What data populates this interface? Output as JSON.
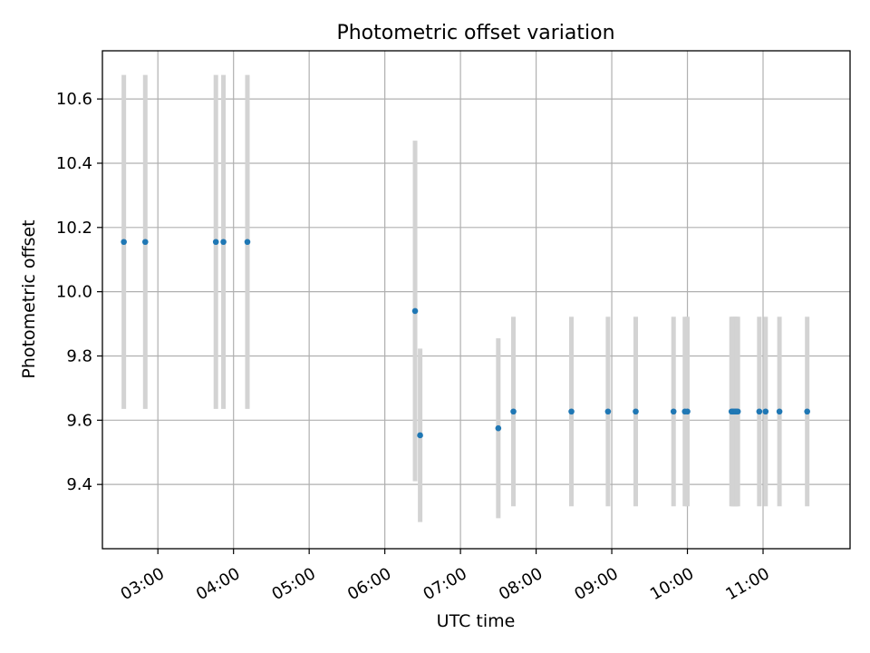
{
  "chart_data": {
    "type": "scatter",
    "title": "Photometric offset variation",
    "xlabel": "UTC time",
    "ylabel": "Photometric offset",
    "x_tick_labels": [
      "03:00",
      "04:00",
      "05:00",
      "06:00",
      "07:00",
      "08:00",
      "09:00",
      "10:00",
      "11:00"
    ],
    "x_tick_hours": [
      3,
      4,
      5,
      6,
      7,
      8,
      9,
      10,
      11
    ],
    "y_tick_labels": [
      "9.4",
      "9.6",
      "9.8",
      "10.0",
      "10.2",
      "10.4",
      "10.6"
    ],
    "y_ticks": [
      9.4,
      9.6,
      9.8,
      10.0,
      10.2,
      10.4,
      10.6
    ],
    "xlim": [
      "02:16",
      "12:09"
    ],
    "ylim": [
      9.2,
      10.75
    ],
    "grid": true,
    "marker_color": "#1f77b4",
    "errorbar_color": "#d3d3d3",
    "points": [
      {
        "x": "02:33",
        "y": 10.155,
        "err": 0.52
      },
      {
        "x": "02:50",
        "y": 10.155,
        "err": 0.52
      },
      {
        "x": "03:46",
        "y": 10.155,
        "err": 0.52
      },
      {
        "x": "03:52",
        "y": 10.155,
        "err": 0.52
      },
      {
        "x": "04:11",
        "y": 10.155,
        "err": 0.52
      },
      {
        "x": "06:24",
        "y": 9.94,
        "err": 0.53
      },
      {
        "x": "06:28",
        "y": 9.553,
        "err": 0.27
      },
      {
        "x": "07:30",
        "y": 9.575,
        "err": 0.28
      },
      {
        "x": "07:42",
        "y": 9.627,
        "err": 0.295
      },
      {
        "x": "08:28",
        "y": 9.627,
        "err": 0.295
      },
      {
        "x": "08:57",
        "y": 9.627,
        "err": 0.295
      },
      {
        "x": "09:19",
        "y": 9.627,
        "err": 0.295
      },
      {
        "x": "09:49",
        "y": 9.627,
        "err": 0.295
      },
      {
        "x": "09:58",
        "y": 9.627,
        "err": 0.295
      },
      {
        "x": "10:00",
        "y": 9.627,
        "err": 0.295
      },
      {
        "x": "10:35",
        "y": 9.627,
        "err": 0.295
      },
      {
        "x": "10:36",
        "y": 9.627,
        "err": 0.295
      },
      {
        "x": "10:37",
        "y": 9.627,
        "err": 0.295
      },
      {
        "x": "10:38",
        "y": 9.627,
        "err": 0.295
      },
      {
        "x": "10:39",
        "y": 9.627,
        "err": 0.295
      },
      {
        "x": "10:40",
        "y": 9.627,
        "err": 0.295
      },
      {
        "x": "10:57",
        "y": 9.627,
        "err": 0.295
      },
      {
        "x": "11:02",
        "y": 9.627,
        "err": 0.295
      },
      {
        "x": "11:13",
        "y": 9.627,
        "err": 0.295
      },
      {
        "x": "11:35",
        "y": 9.627,
        "err": 0.295
      }
    ]
  }
}
